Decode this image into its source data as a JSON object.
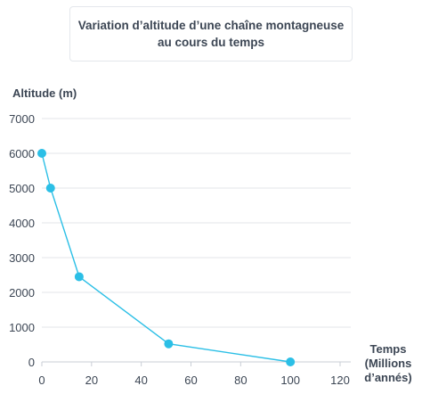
{
  "chart_data": {
    "type": "line",
    "title": "Variation d’altitude d’une chaîne montagneuse\nau cours du temps",
    "ylabel": "Altitude (m)",
    "xlabel_lines": [
      "Temps",
      "(Millions",
      "d’annés)"
    ],
    "xlim": [
      0,
      120
    ],
    "ylim": [
      0,
      7000
    ],
    "x_ticks": [
      0,
      20,
      40,
      60,
      80,
      100,
      120
    ],
    "y_ticks": [
      0,
      1000,
      2000,
      3000,
      4000,
      5000,
      6000,
      7000
    ],
    "grid": true,
    "series": [
      {
        "x": [
          0,
          3.5,
          15,
          51,
          100
        ],
        "y": [
          6000,
          5000,
          2450,
          520,
          0
        ],
        "color": "#2bbfe6"
      }
    ]
  }
}
